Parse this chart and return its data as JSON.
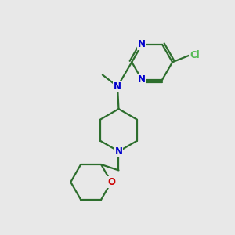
{
  "bg_color": "#e8e8e8",
  "bond_color": "#2d6e2d",
  "bond_width": 1.6,
  "atom_colors": {
    "N": "#0000cc",
    "O": "#cc0000",
    "Cl": "#55bb55",
    "C": "#2d6e2d"
  },
  "font_size_atom": 8.5,
  "figsize": [
    3.0,
    3.0
  ],
  "dpi": 100
}
